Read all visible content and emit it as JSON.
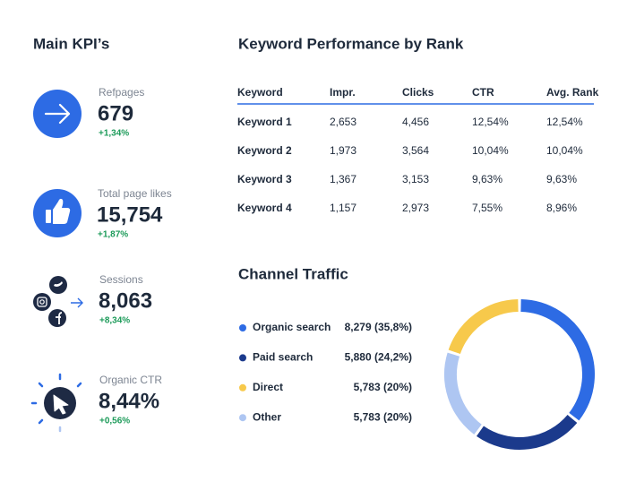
{
  "kpi": {
    "title": "Main KPI’s",
    "items": [
      {
        "label": "Refpages",
        "value": "679",
        "change": "+1,34%"
      },
      {
        "label": "Total page likes",
        "value": "15,754",
        "change": "+1,87%"
      },
      {
        "label": "Sessions",
        "value": "8,063",
        "change": "+8,34%"
      },
      {
        "label": "Organic CTR",
        "value": "8,44%",
        "change": "+0,56%"
      }
    ]
  },
  "keywords": {
    "title": "Keyword Performance by Rank",
    "columns": [
      "Keyword",
      "Impr.",
      "Clicks",
      "CTR",
      "Avg. Rank"
    ],
    "rows": [
      [
        "Keyword 1",
        "2,653",
        "4,456",
        "12,54%",
        "12,54%"
      ],
      [
        "Keyword 2",
        "1,973",
        "3,564",
        "10,04%",
        "10,04%"
      ],
      [
        "Keyword 3",
        "1,367",
        "3,153",
        "9,63%",
        "9,63%"
      ],
      [
        "Keyword 4",
        "1,157",
        "2,973",
        "7,55%",
        "8,96%"
      ]
    ]
  },
  "channels": {
    "title": "Channel Traffic",
    "items": [
      {
        "name": "Organic search",
        "label": "8,279 (35,8%)",
        "share": 35.8,
        "color": "#2d6be4"
      },
      {
        "name": "Paid search",
        "label": "5,880 (24,2%)",
        "share": 24.2,
        "color": "#1b3a8c"
      },
      {
        "name": "Direct",
        "label": "5,783 (20%)",
        "share": 20,
        "color": "#f7c94b"
      },
      {
        "name": "Other",
        "label": "5,783 (20%)",
        "share": 20,
        "color": "#aec6f2"
      }
    ]
  }
}
